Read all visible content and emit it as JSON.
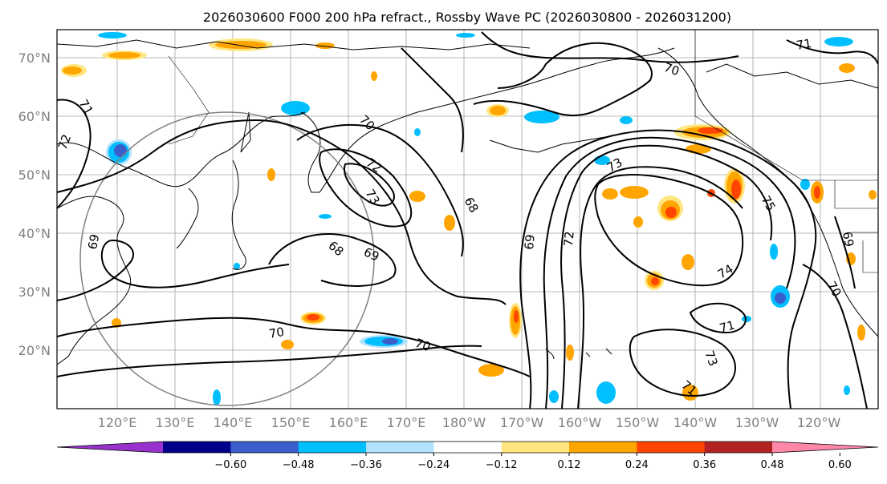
{
  "title": "2026030600 F000 200 hPa refract., Rossby Wave PC (2026030800 - 2026031200)",
  "lat_labels": [
    "70°N",
    "60°N",
    "50°N",
    "40°N",
    "30°N",
    "20°N"
  ],
  "lon_labels": [
    "120°E",
    "130°E",
    "140°E",
    "150°E",
    "160°E",
    "170°E",
    "180°W",
    "170°W",
    "160°W",
    "150°W",
    "140°W",
    "130°W",
    "120°W"
  ],
  "colorbar": {
    "ticks": [
      "−0.60",
      "−0.48",
      "−0.36",
      "−0.24",
      "−0.12",
      "0.12",
      "0.24",
      "0.36",
      "0.48",
      "0.60"
    ],
    "colors": [
      "#9932cc",
      "#00008b",
      "#3a5fcd",
      "#00bfff",
      "#b0e2ff",
      "#ffffff",
      "#ffe680",
      "#ffa500",
      "#ff4500",
      "#b22222",
      "#ff88aa"
    ]
  },
  "contour_labels": [
    "71",
    "72",
    "70",
    "70",
    "72",
    "73",
    "68",
    "69",
    "68",
    "69",
    "70",
    "70",
    "69",
    "72",
    "73",
    "75",
    "74",
    "71",
    "73",
    "71",
    "69",
    "70",
    "71"
  ]
}
